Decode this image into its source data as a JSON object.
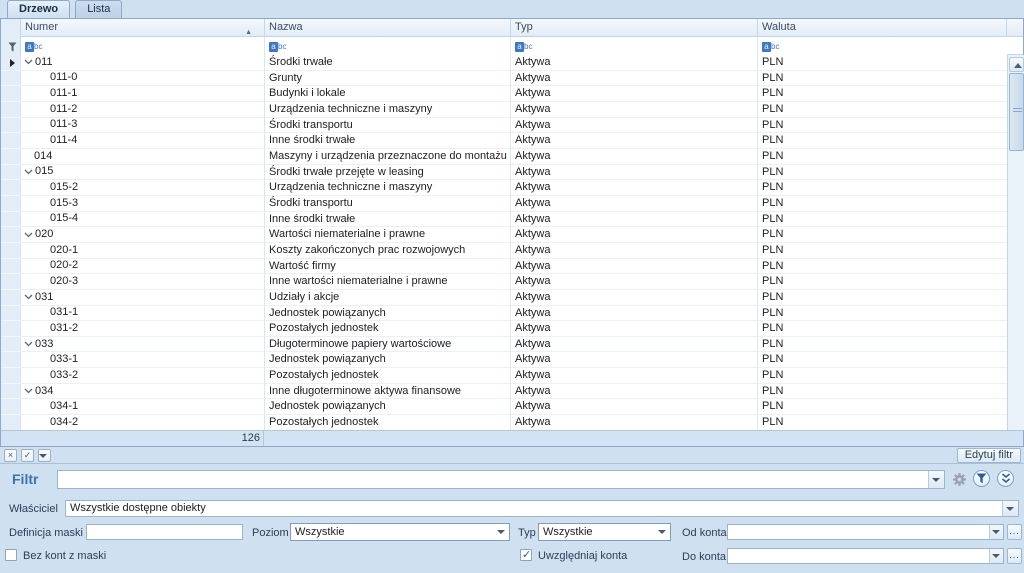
{
  "tabs": [
    {
      "label": "Drzewo",
      "active": true
    },
    {
      "label": "Lista",
      "active": false
    }
  ],
  "grid": {
    "columns": {
      "numer": "Numer",
      "nazwa": "Nazwa",
      "typ": "Typ",
      "waluta": "Waluta"
    },
    "sort": {
      "column": "Numer",
      "direction": "asc",
      "icon": "▲"
    },
    "filter_row_icon": {
      "box": "a",
      "rest": "bc"
    },
    "rows": [
      {
        "num": "011",
        "name": "Środki trwałe",
        "type": "Aktywa",
        "currency": "PLN",
        "level": 0,
        "expandable": true,
        "current": true
      },
      {
        "num": "011-0",
        "name": "Grunty",
        "type": "Aktywa",
        "currency": "PLN",
        "level": 1,
        "expandable": false,
        "current": false
      },
      {
        "num": "011-1",
        "name": "Budynki i lokale",
        "type": "Aktywa",
        "currency": "PLN",
        "level": 1,
        "expandable": false,
        "current": false
      },
      {
        "num": "011-2",
        "name": "Urządzenia techniczne i maszyny",
        "type": "Aktywa",
        "currency": "PLN",
        "level": 1,
        "expandable": false,
        "current": false
      },
      {
        "num": "011-3",
        "name": "Środki transportu",
        "type": "Aktywa",
        "currency": "PLN",
        "level": 1,
        "expandable": false,
        "current": false
      },
      {
        "num": "011-4",
        "name": "Inne środki trwałe",
        "type": "Aktywa",
        "currency": "PLN",
        "level": 1,
        "expandable": false,
        "current": false
      },
      {
        "num": "014",
        "name": "Maszyny i urządzenia przeznaczone do montażu",
        "type": "Aktywa",
        "currency": "PLN",
        "level": 0,
        "expandable": false,
        "current": false
      },
      {
        "num": "015",
        "name": "Środki trwałe przejęte w leasing",
        "type": "Aktywa",
        "currency": "PLN",
        "level": 0,
        "expandable": true,
        "current": false
      },
      {
        "num": "015-2",
        "name": "Urządzenia techniczne i maszyny",
        "type": "Aktywa",
        "currency": "PLN",
        "level": 1,
        "expandable": false,
        "current": false
      },
      {
        "num": "015-3",
        "name": "Środki transportu",
        "type": "Aktywa",
        "currency": "PLN",
        "level": 1,
        "expandable": false,
        "current": false
      },
      {
        "num": "015-4",
        "name": "Inne środki trwałe",
        "type": "Aktywa",
        "currency": "PLN",
        "level": 1,
        "expandable": false,
        "current": false
      },
      {
        "num": "020",
        "name": "Wartości niematerialne i prawne",
        "type": "Aktywa",
        "currency": "PLN",
        "level": 0,
        "expandable": true,
        "current": false
      },
      {
        "num": "020-1",
        "name": "Koszty zakończonych prac rozwojowych",
        "type": "Aktywa",
        "currency": "PLN",
        "level": 1,
        "expandable": false,
        "current": false
      },
      {
        "num": "020-2",
        "name": "Wartość firmy",
        "type": "Aktywa",
        "currency": "PLN",
        "level": 1,
        "expandable": false,
        "current": false
      },
      {
        "num": "020-3",
        "name": "Inne wartości niematerialne i prawne",
        "type": "Aktywa",
        "currency": "PLN",
        "level": 1,
        "expandable": false,
        "current": false
      },
      {
        "num": "031",
        "name": "Udziały i akcje",
        "type": "Aktywa",
        "currency": "PLN",
        "level": 0,
        "expandable": true,
        "current": false
      },
      {
        "num": "031-1",
        "name": "Jednostek powiązanych",
        "type": "Aktywa",
        "currency": "PLN",
        "level": 1,
        "expandable": false,
        "current": false
      },
      {
        "num": "031-2",
        "name": "Pozostałych jednostek",
        "type": "Aktywa",
        "currency": "PLN",
        "level": 1,
        "expandable": false,
        "current": false
      },
      {
        "num": "033",
        "name": "Długoterminowe papiery wartościowe",
        "type": "Aktywa",
        "currency": "PLN",
        "level": 0,
        "expandable": true,
        "current": false
      },
      {
        "num": "033-1",
        "name": "Jednostek powiązanych",
        "type": "Aktywa",
        "currency": "PLN",
        "level": 1,
        "expandable": false,
        "current": false
      },
      {
        "num": "033-2",
        "name": "Pozostałych jednostek",
        "type": "Aktywa",
        "currency": "PLN",
        "level": 1,
        "expandable": false,
        "current": false
      },
      {
        "num": "034",
        "name": "Inne długoterminowe aktywa finansowe",
        "type": "Aktywa",
        "currency": "PLN",
        "level": 0,
        "expandable": true,
        "current": false
      },
      {
        "num": "034-1",
        "name": "Jednostek powiązanych",
        "type": "Aktywa",
        "currency": "PLN",
        "level": 1,
        "expandable": false,
        "current": false
      },
      {
        "num": "034-2",
        "name": "Pozostałych jednostek",
        "type": "Aktywa",
        "currency": "PLN",
        "level": 1,
        "expandable": false,
        "current": false
      }
    ],
    "summary_count": "126"
  },
  "toolbar": {
    "clear_icon": "×",
    "check_icon": "✓",
    "edit_filter_label": "Edytuj filtr"
  },
  "filter_panel": {
    "filtr_label": "Filtr",
    "filtr_value": "",
    "wlasciciel_label": "Właściciel",
    "wlasciciel_value": "Wszystkie dostępne obiekty",
    "definicja_maski_label": "Definicja maski",
    "definicja_maski_value": "",
    "poziom_label": "Poziom",
    "poziom_value": "Wszystkie",
    "typ_label": "Typ",
    "typ_value": "Wszystkie",
    "od_konta_label": "Od konta:",
    "od_konta_value": "",
    "do_konta_label": "Do konta:",
    "do_konta_value": "",
    "bez_kont_label": "Bez kont z maski",
    "bez_kont_checked": false,
    "uwzgledniaj_label": "Uwzględniaj konta",
    "uwzgledniaj_checked": true,
    "ellipsis_label": "..."
  },
  "colors": {
    "accent_blue": "#3f72ad",
    "panel_bg": "#cfe0f1",
    "filter_icon_blue": "#3f77c0"
  }
}
